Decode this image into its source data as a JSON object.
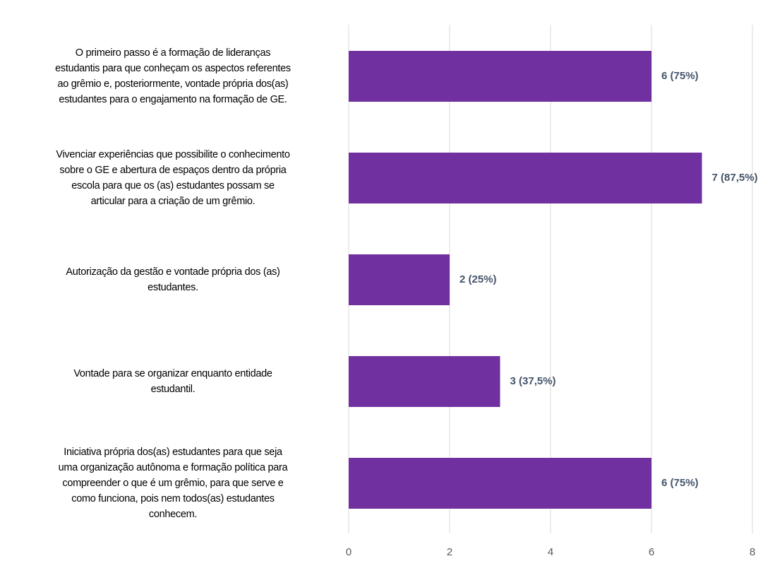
{
  "chart_data": {
    "type": "bar",
    "orientation": "horizontal",
    "categories": [
      "O primeiro passo é a formação de lideranças\nestudantis para que conheçam os aspectos referentes\nao grêmio e, posteriormente, vontade própria dos(as)\nestudantes para o engajamento na formação de GE.",
      "Vivenciar experiências que possibilite o conhecimento\nsobre o GE e  abertura de espaços dentro da própria\nescola para que os (as)  estudantes possam  se\narticular para a criação de um grêmio.",
      "Autorização da gestão e vontade própria dos (as)\nestudantes.",
      "Vontade para se organizar enquanto entidade\nestudantil.",
      "Iniciativa própria dos(as) estudantes para que seja\numa organização autônoma e formação política para\ncompreender o que é um grêmio, para que serve e\ncomo funciona, pois nem todos(as)  estudantes\nconhecem."
    ],
    "values": [
      6,
      7,
      2,
      3,
      6
    ],
    "value_labels": [
      "6 (75%)",
      "7 (87,5%)",
      "2 (25%)",
      "3 (37,5%)",
      "6 (75%)"
    ],
    "color": "#7030a0",
    "xlim": [
      0,
      8
    ],
    "xticks": [
      0,
      2,
      4,
      6,
      8
    ],
    "grid": true
  }
}
